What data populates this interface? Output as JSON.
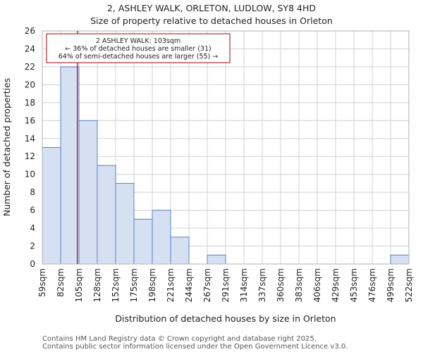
{
  "chart_data": {
    "type": "bar",
    "title": "2, ASHLEY WALK, ORLETON, LUDLOW, SY8 4HD",
    "subtitle": "Size of property relative to detached houses in Orleton",
    "xlabel": "Distribution of detached houses by size in Orleton",
    "ylabel": "Number of detached properties",
    "bin_edges": [
      "59sqm",
      "82sqm",
      "105sqm",
      "128sqm",
      "152sqm",
      "175sqm",
      "198sqm",
      "221sqm",
      "244sqm",
      "267sqm",
      "291sqm",
      "314sqm",
      "337sqm",
      "360sqm",
      "383sqm",
      "406sqm",
      "429sqm",
      "453sqm",
      "476sqm",
      "499sqm",
      "522sqm"
    ],
    "values": [
      13,
      22,
      16,
      11,
      9,
      5,
      6,
      3,
      0,
      1,
      0,
      0,
      0,
      0,
      0,
      0,
      0,
      0,
      0,
      1
    ],
    "ylim": [
      0,
      26
    ],
    "yticks": [
      0,
      2,
      4,
      6,
      8,
      10,
      12,
      14,
      16,
      18,
      20,
      22,
      24,
      26
    ],
    "grid": true,
    "colors": {
      "bar_fill": "#d6e0f3",
      "bar_stroke": "#5b7fc4",
      "marker": "#aa0000",
      "grid": "#d0d0d0"
    },
    "marker": {
      "value_sqm": 103
    },
    "annotation": {
      "line1": "2 ASHLEY WALK: 103sqm",
      "line2": "← 36% of detached houses are smaller (31)",
      "line3": "64% of semi-detached houses are larger (55) →"
    }
  },
  "footer": {
    "line1": "Contains HM Land Registry data © Crown copyright and database right 2025.",
    "line2": "Contains public sector information licensed under the Open Government Licence v3.0."
  }
}
